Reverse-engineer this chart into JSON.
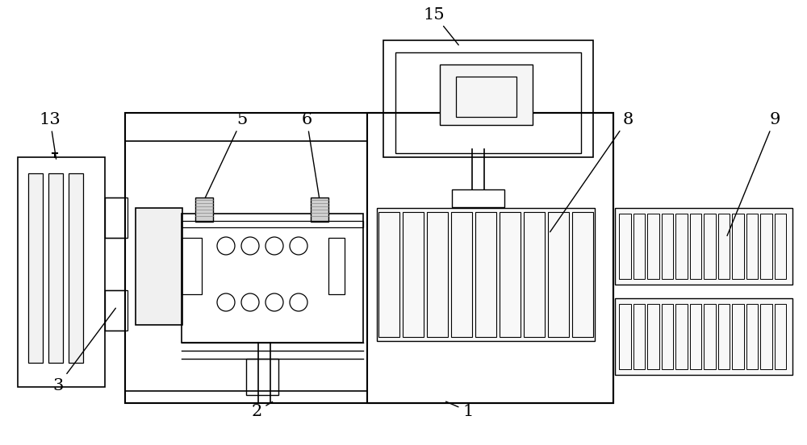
{
  "bg_color": "#ffffff",
  "lc": "#000000",
  "label_fontsize": 15,
  "fig_w": 10.0,
  "fig_h": 5.52,
  "dpi": 100
}
